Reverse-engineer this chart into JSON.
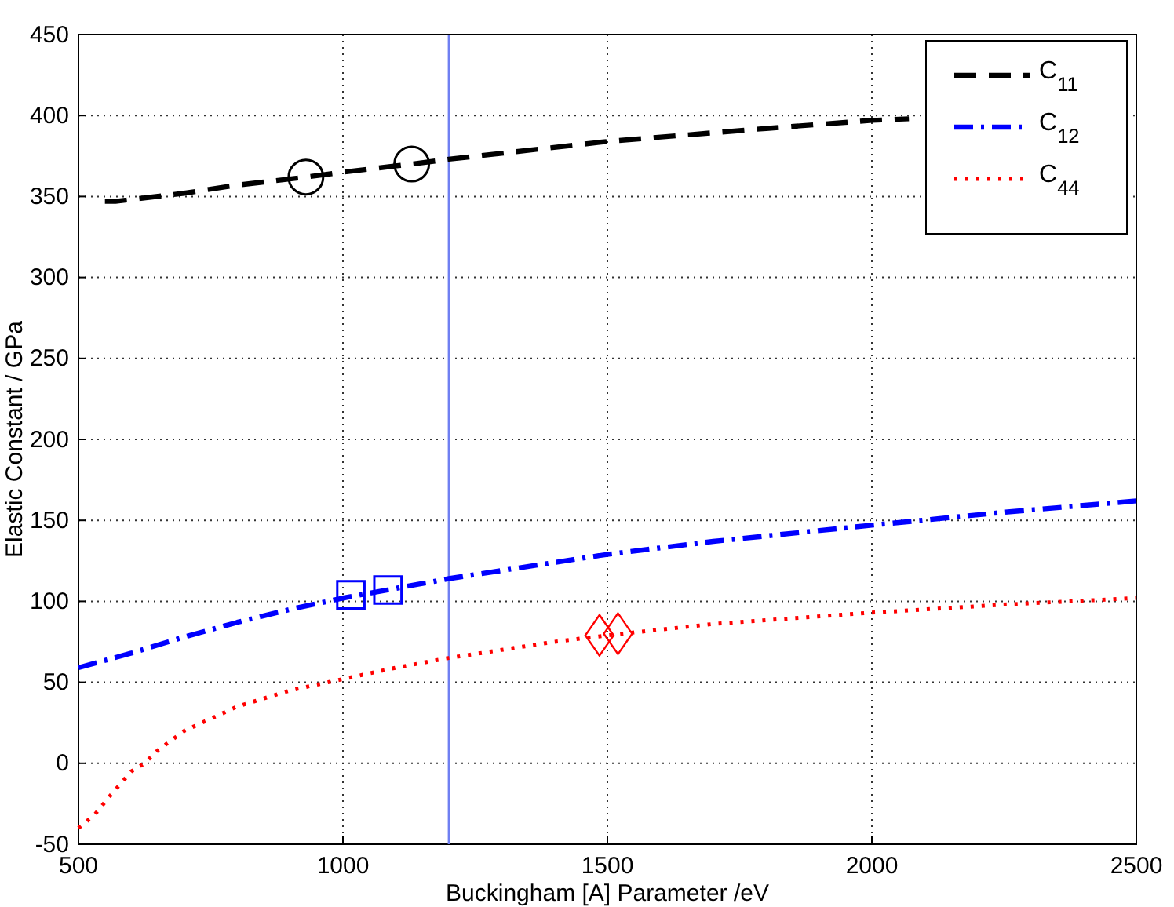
{
  "chart_data": {
    "type": "line",
    "xlabel": "Buckingham [A] Parameter /eV",
    "ylabel": "Elastic Constant / GPa",
    "xlim": [
      500,
      2500
    ],
    "xticks": [
      500,
      1000,
      1500,
      2000,
      2500
    ],
    "ylim": [
      -50,
      450
    ],
    "yticks": [
      -50,
      0,
      50,
      100,
      150,
      200,
      250,
      300,
      350,
      400,
      450
    ],
    "grid": true,
    "legend": "top right",
    "ref_lines": [
      {
        "axis": "x",
        "value": 1200,
        "color": "#6f7ff2",
        "line_style": "solid"
      }
    ],
    "series": [
      {
        "name": "C$_{11}$",
        "color": "#000000",
        "line_style": "dashed",
        "marker": "none",
        "x": [
          550,
          570,
          700,
          800,
          930,
          1000,
          1130,
          1200,
          1500,
          1800,
          2000,
          2070
        ],
        "values": [
          347,
          347,
          352,
          357,
          362,
          365,
          370,
          373,
          384,
          392,
          397,
          398
        ]
      },
      {
        "name": "C$_{12}$",
        "color": "#0000ff",
        "line_style": "dashdot",
        "marker": "none",
        "x": [
          500,
          600,
          700,
          800,
          900,
          1000,
          1100,
          1200,
          1400,
          1500,
          1700,
          2000,
          2250,
          2500
        ],
        "values": [
          59,
          68,
          78,
          87,
          95,
          102,
          108,
          114,
          124,
          129,
          137,
          147,
          155,
          162
        ]
      },
      {
        "name": "C$_{44}$",
        "color": "#ff0000",
        "line_style": "dotted",
        "marker": "none",
        "x": [
          500,
          530,
          560,
          600,
          625,
          650,
          700,
          800,
          900,
          1000,
          1100,
          1200,
          1300,
          1400,
          1500,
          1700,
          2000,
          2250,
          2500
        ],
        "values": [
          -40,
          -32,
          -20,
          -5,
          0,
          8,
          20,
          35,
          45,
          52,
          59,
          65,
          70,
          75,
          79,
          86,
          93,
          98,
          102
        ]
      },
      {
        "type": "scatter",
        "color": "#000000",
        "marker": "circle",
        "x": [
          930,
          1130
        ],
        "values": [
          362,
          370
        ]
      },
      {
        "type": "scatter",
        "color": "#0000ff",
        "marker": "square",
        "x": [
          1015,
          1085
        ],
        "values": [
          104,
          107
        ]
      },
      {
        "type": "scatter",
        "color": "#ff0000",
        "marker": "diamond",
        "x": [
          1485,
          1520
        ],
        "values": [
          79,
          80
        ]
      }
    ]
  }
}
